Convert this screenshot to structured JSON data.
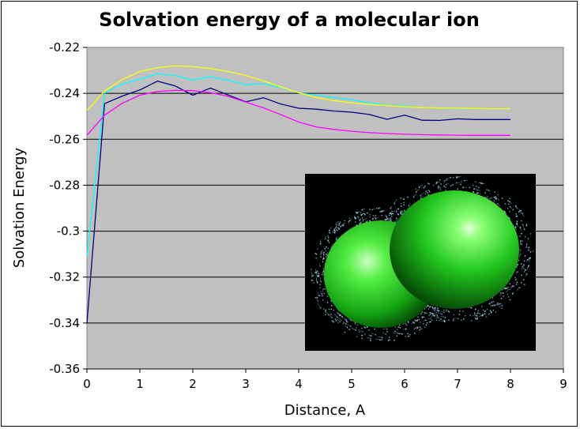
{
  "chart_data": {
    "type": "line",
    "title": "Solvation energy of a molecular ion",
    "xlabel": "Distance, A",
    "ylabel": "Solvation Energy",
    "xlim": [
      0,
      9
    ],
    "ylim": [
      -0.36,
      -0.22
    ],
    "xticks": [
      0,
      1,
      2,
      3,
      4,
      5,
      6,
      7,
      8,
      9
    ],
    "yticks": [
      -0.22,
      -0.24,
      -0.26,
      -0.28,
      -0.3,
      -0.32,
      -0.34,
      -0.36
    ],
    "grid": "horizontal",
    "background": "#c0c0c0",
    "series": [
      {
        "color": "#000080",
        "x": [
          0,
          0.333,
          0.667,
          1,
          1.333,
          1.667,
          2,
          2.333,
          2.667,
          3,
          3.333,
          3.667,
          4,
          4.333,
          4.667,
          5,
          5.333,
          5.667,
          6,
          6.333,
          6.667,
          7,
          7.333,
          7.667,
          8
        ],
        "y": [
          -0.34,
          -0.2445,
          -0.2412,
          -0.2385,
          -0.2347,
          -0.2368,
          -0.2408,
          -0.2377,
          -0.2407,
          -0.2437,
          -0.2419,
          -0.2447,
          -0.2465,
          -0.2469,
          -0.2477,
          -0.2482,
          -0.2492,
          -0.2513,
          -0.2495,
          -0.2517,
          -0.2518,
          -0.2511,
          -0.2514,
          -0.2514,
          -0.2514
        ]
      },
      {
        "color": "#00ffff",
        "x": [
          0,
          0.333,
          0.667,
          1,
          1.333,
          1.667,
          2,
          2.333,
          2.667,
          3,
          3.333,
          3.667,
          4,
          4.333,
          4.667,
          5,
          5.333,
          5.667,
          6,
          6.333,
          6.667,
          7,
          7.333,
          7.667,
          8
        ],
        "y": [
          -0.311,
          -0.24,
          -0.236,
          -0.2338,
          -0.2315,
          -0.2322,
          -0.2342,
          -0.2328,
          -0.2343,
          -0.2362,
          -0.2358,
          -0.2375,
          -0.2398,
          -0.2408,
          -0.2418,
          -0.2428,
          -0.2442,
          -0.2452,
          -0.2455,
          -0.2463,
          -0.2465,
          -0.2466,
          -0.2467,
          -0.2467,
          -0.2468
        ]
      },
      {
        "color": "#ffff00",
        "x": [
          0,
          0.333,
          0.667,
          1,
          1.333,
          1.667,
          2,
          2.333,
          2.667,
          3,
          3.333,
          3.667,
          4,
          4.333,
          4.667,
          5,
          5.333,
          5.667,
          6,
          6.333,
          6.667,
          7,
          7.333,
          7.667,
          8
        ],
        "y": [
          -0.2475,
          -0.239,
          -0.234,
          -0.2305,
          -0.2288,
          -0.2281,
          -0.2284,
          -0.2292,
          -0.2305,
          -0.2322,
          -0.2346,
          -0.2373,
          -0.2397,
          -0.2418,
          -0.2432,
          -0.2441,
          -0.2448,
          -0.2453,
          -0.2458,
          -0.2462,
          -0.2464,
          -0.2465,
          -0.2466,
          -0.2467,
          -0.2467
        ]
      },
      {
        "color": "#ff00ff",
        "x": [
          0,
          0.333,
          0.667,
          1,
          1.333,
          1.667,
          2,
          2.333,
          2.667,
          3,
          3.333,
          3.667,
          4,
          4.333,
          4.667,
          5,
          5.333,
          5.667,
          6,
          6.333,
          6.667,
          7,
          7.333,
          7.667,
          8
        ],
        "y": [
          -0.2583,
          -0.2495,
          -0.2443,
          -0.2408,
          -0.2392,
          -0.2387,
          -0.2388,
          -0.2397,
          -0.2413,
          -0.2438,
          -0.2463,
          -0.2493,
          -0.2525,
          -0.2546,
          -0.2557,
          -0.2565,
          -0.2571,
          -0.2575,
          -0.2578,
          -0.258,
          -0.2581,
          -0.2582,
          -0.2583,
          -0.2583,
          -0.2583
        ]
      }
    ]
  },
  "inset": {
    "icon": "molecule-surface-icon",
    "background": "#000000",
    "surface_color": "#22cc22",
    "mesh_color": "#9fdcf0"
  }
}
